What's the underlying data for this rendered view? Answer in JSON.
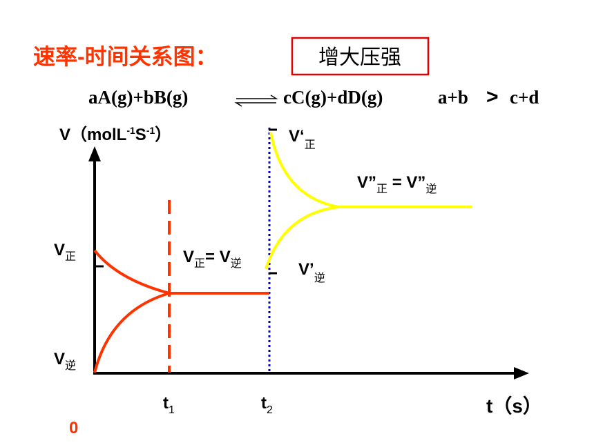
{
  "title": "速率-时间关系图：",
  "condition": "增大压强",
  "equation": {
    "left": "aA(g)+bB(g)",
    "right": "cC(g)+dD(g)",
    "condition_left": "a+b",
    "relation": ">",
    "condition_right": "c+d"
  },
  "axes": {
    "y_label": [
      "V（molL",
      "-1",
      "S",
      "-1",
      "）"
    ],
    "x_label": "t（s）",
    "origin": "0",
    "t1": [
      "t",
      "1"
    ],
    "t2": [
      "t",
      "2"
    ]
  },
  "labels": {
    "v_forward": [
      "V",
      "正"
    ],
    "v_reverse": [
      "V",
      "逆"
    ],
    "equilibrium_1": [
      "V",
      "正",
      "= V",
      "逆"
    ],
    "v1_forward": [
      "V‘",
      "正"
    ],
    "v1_reverse": [
      "V’",
      "逆"
    ],
    "equilibrium_2": [
      "V”",
      "正",
      " = V”",
      "逆"
    ]
  }
}
